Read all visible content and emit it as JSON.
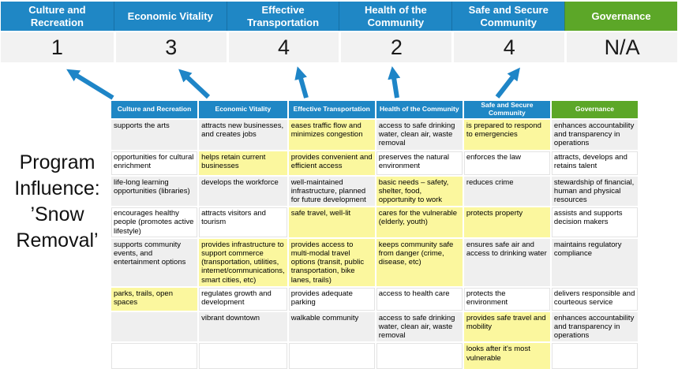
{
  "colors": {
    "blue": "#1F87C5",
    "green": "#5CA728",
    "yellow": "#FBF79E",
    "row_gray": "#EFEFEF",
    "score_bg": "#F2F2F2",
    "arrow_blue": "#1E85C7"
  },
  "program_label": "Program\nInfluence:\n’Snow\nRemoval’",
  "scoreboard": {
    "columns": [
      {
        "label": "Culture and Recreation",
        "score": "1",
        "theme": "blue"
      },
      {
        "label": "Economic Vitality",
        "score": "3",
        "theme": "blue"
      },
      {
        "label": "Effective Transportation",
        "score": "4",
        "theme": "blue"
      },
      {
        "label": "Health of the Community",
        "score": "2",
        "theme": "blue"
      },
      {
        "label": "Safe and Secure Community",
        "score": "4",
        "theme": "blue"
      },
      {
        "label": "Governance",
        "score": "N/A",
        "theme": "green"
      }
    ]
  },
  "matrix": {
    "headers": [
      {
        "label": "Culture and Recreation",
        "theme": "blue"
      },
      {
        "label": "Economic Vitality",
        "theme": "blue"
      },
      {
        "label": "Effective Transportation",
        "theme": "blue"
      },
      {
        "label": "Health of the Community",
        "theme": "blue"
      },
      {
        "label": "Safe and Secure Community",
        "theme": "blue"
      },
      {
        "label": "Governance",
        "theme": "green"
      }
    ],
    "rows": [
      [
        {
          "text": "supports the arts",
          "highlight": false
        },
        {
          "text": "attracts new businesses, and creates jobs",
          "highlight": false
        },
        {
          "text": "eases traffic flow and minimizes congestion",
          "highlight": true
        },
        {
          "text": "access to safe drinking water, clean air, waste removal",
          "highlight": false
        },
        {
          "text": "is prepared to respond to emergencies",
          "highlight": true
        },
        {
          "text": "enhances accountability and transparency in operations",
          "highlight": false
        }
      ],
      [
        {
          "text": "opportunities for cultural enrichment",
          "highlight": false
        },
        {
          "text": "helps retain current businesses",
          "highlight": true
        },
        {
          "text": "provides convenient and efficient access",
          "highlight": true
        },
        {
          "text": "preserves the natural environment",
          "highlight": false
        },
        {
          "text": "enforces the law",
          "highlight": false
        },
        {
          "text": "attracts, develops and retains talent",
          "highlight": false
        }
      ],
      [
        {
          "text": "life-long learning opportunities (libraries)",
          "highlight": false
        },
        {
          "text": "develops the workforce",
          "highlight": false
        },
        {
          "text": "well-maintained infrastructure, planned for future development",
          "highlight": false
        },
        {
          "text": "basic needs – safety, shelter, food, opportunity to work",
          "highlight": true
        },
        {
          "text": "reduces crime",
          "highlight": false
        },
        {
          "text": "stewardship of financial, human and physical resources",
          "highlight": false
        }
      ],
      [
        {
          "text": "encourages healthy people (promotes active lifestyle)",
          "highlight": false
        },
        {
          "text": "attracts visitors and tourism",
          "highlight": false
        },
        {
          "text": "safe travel, well-lit",
          "highlight": true
        },
        {
          "text": "cares for the vulnerable (elderly, youth)",
          "highlight": true
        },
        {
          "text": "protects property",
          "highlight": true
        },
        {
          "text": "assists and supports decision makers",
          "highlight": false
        }
      ],
      [
        {
          "text": "supports community events, and entertainment options",
          "highlight": false
        },
        {
          "text": "provides infrastructure to support commerce (transportation, utilities, internet/communications, smart cities, etc)",
          "highlight": true
        },
        {
          "text": "provides access to multi-modal travel options (transit, public transportation, bike lanes, trails)",
          "highlight": true
        },
        {
          "text": "keeps community safe from danger (crime, disease, etc)",
          "highlight": true
        },
        {
          "text": "ensures safe air and access to drinking water",
          "highlight": false
        },
        {
          "text": "maintains regulatory compliance",
          "highlight": false
        }
      ],
      [
        {
          "text": "parks, trails, open spaces",
          "highlight": true
        },
        {
          "text": "regulates growth and development",
          "highlight": false
        },
        {
          "text": "provides adequate parking",
          "highlight": false
        },
        {
          "text": "access to health care",
          "highlight": false
        },
        {
          "text": "protects the environment",
          "highlight": false
        },
        {
          "text": "delivers responsible and courteous service",
          "highlight": false
        }
      ],
      [
        {
          "text": "",
          "highlight": false
        },
        {
          "text": "vibrant downtown",
          "highlight": false
        },
        {
          "text": "walkable community",
          "highlight": false
        },
        {
          "text": "access to safe drinking water, clean air, waste removal",
          "highlight": false
        },
        {
          "text": "provides safe travel and mobility",
          "highlight": true
        },
        {
          "text": "enhances accountability and transparency in operations",
          "highlight": false
        }
      ],
      [
        {
          "text": "",
          "highlight": false
        },
        {
          "text": "",
          "highlight": false
        },
        {
          "text": "",
          "highlight": false
        },
        {
          "text": "",
          "highlight": false
        },
        {
          "text": "looks after it's most vulnerable",
          "highlight": true
        },
        {
          "text": "",
          "highlight": false
        }
      ]
    ]
  }
}
